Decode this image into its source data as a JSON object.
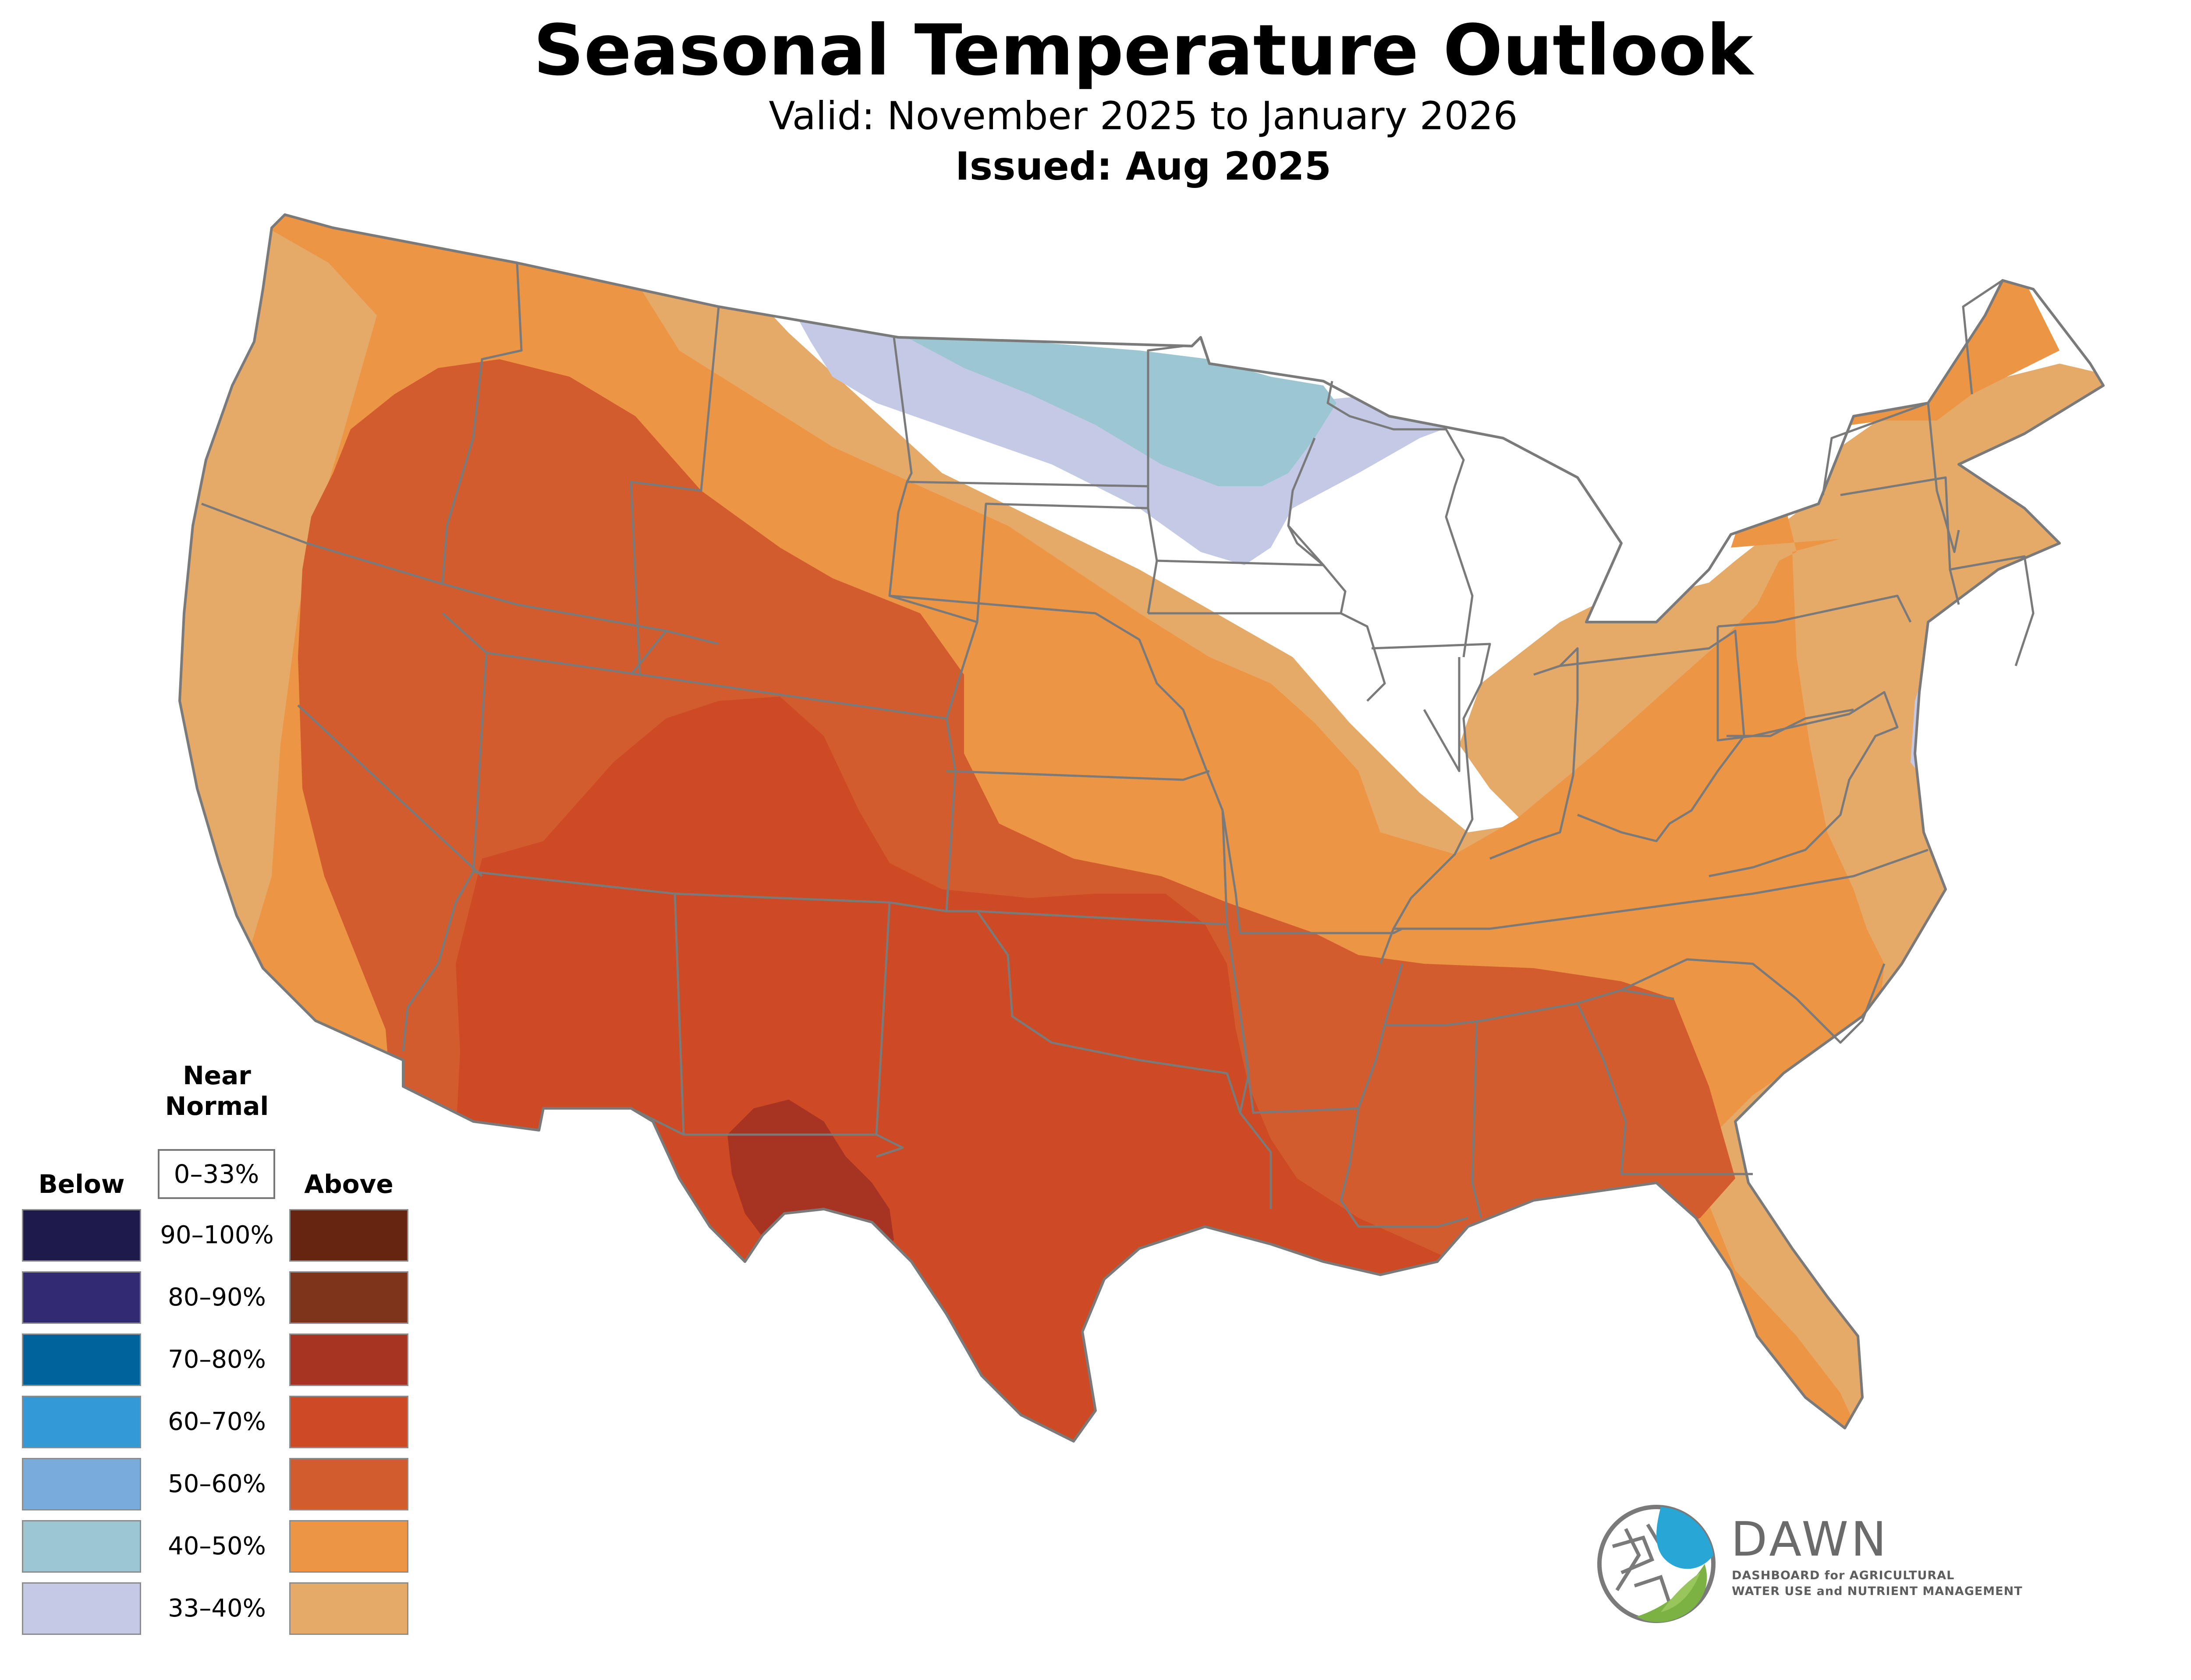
{
  "header": {
    "title": "Seasonal Temperature Outlook",
    "valid": "Valid: November 2025 to January 2026",
    "issued": "Issued: Aug 2025"
  },
  "legend": {
    "below_label": "Below",
    "near_normal_label_1": "Near",
    "near_normal_label_2": "Normal",
    "near_normal_range": "0–33%",
    "above_label": "Above",
    "rows": [
      {
        "range": "90–100%",
        "below_color": "#1e1b4c",
        "above_color": "#652510"
      },
      {
        "range": "80–90%",
        "below_color": "#322a73",
        "above_color": "#7e331b"
      },
      {
        "range": "70–80%",
        "below_color": "#00639c",
        "above_color": "#a73323"
      },
      {
        "range": "60–70%",
        "below_color": "#339ad7",
        "above_color": "#cd4a24"
      },
      {
        "range": "50–60%",
        "below_color": "#79acdc",
        "above_color": "#d35c2f"
      },
      {
        "range": "40–50%",
        "below_color": "#9cc6d2",
        "above_color": "#ec9645"
      },
      {
        "range": "33–40%",
        "below_color": "#c4cae6",
        "above_color": "#e6aa68"
      }
    ]
  },
  "logo": {
    "name": "DAWN",
    "line1": "DASHBOARD for AGRICULTURAL",
    "line2": "WATER USE and NUTRIENT MANAGEMENT"
  },
  "colors": {
    "near_normal": "#ffffff",
    "boundary": "#7a7a7a"
  }
}
